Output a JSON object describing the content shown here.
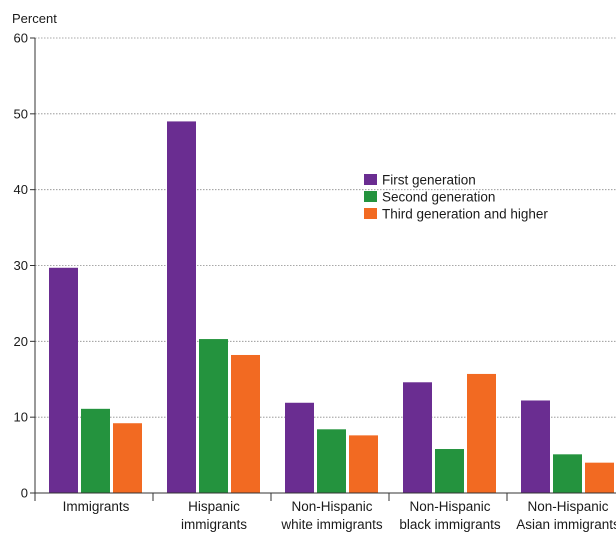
{
  "chart_data": {
    "type": "bar",
    "title": "",
    "ylabel": "Percent",
    "xlabel": "",
    "ylim": [
      0,
      60
    ],
    "yticks": [
      0,
      10,
      20,
      30,
      40,
      50,
      60
    ],
    "grid": true,
    "legend_position": "upper-right",
    "categories": [
      [
        "Immigrants"
      ],
      [
        "Hispanic",
        "immigrants"
      ],
      [
        "Non-Hispanic",
        "white immigrants"
      ],
      [
        "Non-Hispanic",
        "black immigrants"
      ],
      [
        "Non-Hispanic",
        "Asian immigrants"
      ]
    ],
    "series": [
      {
        "name": "First generation",
        "color": "#6a2d91",
        "values": [
          29.7,
          49.0,
          11.9,
          14.6,
          12.2
        ]
      },
      {
        "name": "Second generation",
        "color": "#24933e",
        "values": [
          11.1,
          20.3,
          8.4,
          5.8,
          5.1
        ]
      },
      {
        "name": "Third generation and higher",
        "color": "#f26a22",
        "values": [
          9.2,
          18.2,
          7.6,
          15.7,
          4.0
        ]
      }
    ]
  }
}
